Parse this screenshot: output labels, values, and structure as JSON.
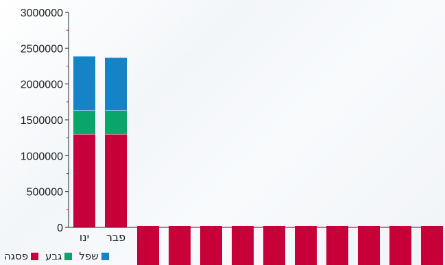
{
  "chart_data": {
    "type": "bar",
    "stacked": true,
    "title": "",
    "xlabel": "",
    "ylabel": "",
    "ylim": [
      0,
      3000000
    ],
    "yticks": [
      0,
      500000,
      1000000,
      1500000,
      2000000,
      2500000,
      3000000
    ],
    "categories": [
      "ינו",
      "פבר",
      "",
      "",
      "",
      "",
      "",
      "",
      "",
      "",
      "",
      ""
    ],
    "series": [
      {
        "name": "פסגה",
        "color": "#c8003a",
        "values": [
          1300000,
          1300000,
          0,
          0,
          0,
          0,
          0,
          0,
          0,
          0,
          0,
          0
        ]
      },
      {
        "name": "גבע",
        "color": "#0aa56a",
        "values": [
          330000,
          330000,
          0,
          0,
          0,
          0,
          0,
          0,
          0,
          0,
          0,
          0
        ]
      },
      {
        "name": "שפל",
        "color": "#1584c6",
        "values": [
          760000,
          740000,
          0,
          0,
          0,
          0,
          0,
          0,
          0,
          0,
          0,
          0
        ]
      }
    ],
    "overlay_bars": {
      "color": "#c8003a",
      "count": 10
    },
    "legend_position": "bottom-left",
    "grid": false
  }
}
